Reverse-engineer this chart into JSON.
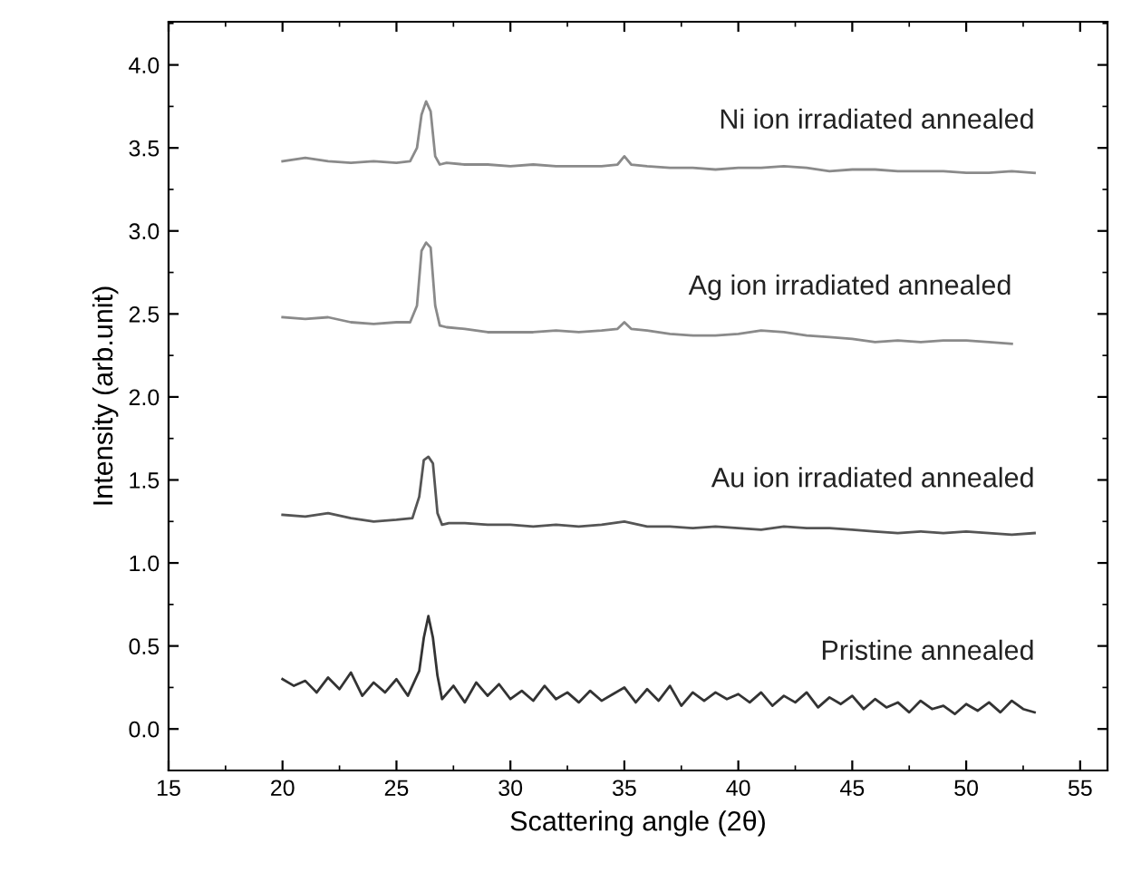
{
  "chart_data": {
    "type": "line",
    "xlabel": "Scattering angle (2θ)",
    "ylabel": "Intensity (arb.unit)",
    "xlim": [
      15,
      56.2
    ],
    "ylim": [
      -0.25,
      4.26
    ],
    "xticks": [
      15,
      20,
      25,
      30,
      35,
      40,
      45,
      50,
      55
    ],
    "yticks": [
      {
        "value": 0,
        "label": "0.0"
      },
      {
        "value": 0.5,
        "label": "0.5"
      },
      {
        "value": 1,
        "label": "1.0"
      },
      {
        "value": 1.5,
        "label": "1.5"
      },
      {
        "value": 2,
        "label": "2.0"
      },
      {
        "value": 2.5,
        "label": "2.5"
      },
      {
        "value": 3,
        "label": "3.0"
      },
      {
        "value": 3.5,
        "label": "3.5"
      },
      {
        "value": 4,
        "label": "4.0"
      }
    ],
    "grid": false,
    "legend": false,
    "series": [
      {
        "name": "Ni ion irradiated annealed",
        "color": "#8a8a8a",
        "x": [
          20,
          21,
          22,
          23,
          24,
          25,
          25.6,
          25.9,
          26.1,
          26.3,
          26.5,
          26.7,
          26.9,
          27.2,
          28,
          29,
          30,
          31,
          32,
          33,
          34,
          34.7,
          35,
          35.3,
          36,
          37,
          38,
          39,
          40,
          41,
          42,
          43,
          44,
          45,
          46,
          47,
          48,
          49,
          50,
          51,
          52,
          53
        ],
        "values": [
          3.42,
          3.44,
          3.42,
          3.41,
          3.42,
          3.41,
          3.42,
          3.5,
          3.7,
          3.78,
          3.72,
          3.45,
          3.4,
          3.41,
          3.4,
          3.4,
          3.39,
          3.4,
          3.39,
          3.39,
          3.39,
          3.4,
          3.45,
          3.4,
          3.39,
          3.38,
          3.38,
          3.37,
          3.38,
          3.38,
          3.39,
          3.38,
          3.36,
          3.37,
          3.37,
          3.36,
          3.36,
          3.36,
          3.35,
          3.35,
          3.36,
          3.35
        ]
      },
      {
        "name": "Ag ion irradiated annealed",
        "color": "#8a8a8a",
        "x": [
          20,
          21,
          22,
          23,
          24,
          25,
          25.6,
          25.9,
          26.1,
          26.3,
          26.5,
          26.7,
          26.9,
          27.2,
          28,
          29,
          30,
          31,
          32,
          33,
          34,
          34.7,
          35,
          35.3,
          36,
          37,
          38,
          39,
          40,
          41,
          42,
          43,
          44,
          45,
          46,
          47,
          48,
          49,
          50,
          51,
          52
        ],
        "values": [
          2.48,
          2.47,
          2.48,
          2.45,
          2.44,
          2.45,
          2.45,
          2.55,
          2.88,
          2.93,
          2.9,
          2.55,
          2.43,
          2.42,
          2.41,
          2.39,
          2.39,
          2.39,
          2.4,
          2.39,
          2.4,
          2.41,
          2.45,
          2.41,
          2.4,
          2.38,
          2.37,
          2.37,
          2.38,
          2.4,
          2.39,
          2.37,
          2.36,
          2.35,
          2.33,
          2.34,
          2.33,
          2.34,
          2.34,
          2.33,
          2.32
        ]
      },
      {
        "name": "Au ion irradiated annealed",
        "color": "#555555",
        "x": [
          20,
          21,
          22,
          23,
          24,
          25,
          25.7,
          26,
          26.2,
          26.4,
          26.6,
          26.8,
          27.0,
          27.3,
          28,
          29,
          30,
          31,
          32,
          33,
          34,
          35,
          36,
          37,
          38,
          39,
          40,
          41,
          42,
          43,
          44,
          45,
          46,
          47,
          48,
          49,
          50,
          51,
          52,
          53
        ],
        "values": [
          1.29,
          1.28,
          1.3,
          1.27,
          1.25,
          1.26,
          1.27,
          1.4,
          1.62,
          1.64,
          1.6,
          1.3,
          1.23,
          1.24,
          1.24,
          1.23,
          1.23,
          1.22,
          1.23,
          1.22,
          1.23,
          1.25,
          1.22,
          1.22,
          1.21,
          1.22,
          1.21,
          1.2,
          1.22,
          1.21,
          1.21,
          1.2,
          1.19,
          1.18,
          1.19,
          1.18,
          1.19,
          1.18,
          1.17,
          1.18
        ]
      },
      {
        "name": "Pristine annealed",
        "color": "#333333",
        "x": [
          20,
          20.5,
          21,
          21.5,
          22,
          22.5,
          23,
          23.5,
          24,
          24.5,
          25,
          25.5,
          26,
          26.2,
          26.4,
          26.6,
          26.8,
          27,
          27.5,
          28,
          28.5,
          29,
          29.5,
          30,
          30.5,
          31,
          31.5,
          32,
          32.5,
          33,
          33.5,
          34,
          34.5,
          35,
          35.5,
          36,
          36.5,
          37,
          37.5,
          38,
          38.5,
          39,
          39.5,
          40,
          40.5,
          41,
          41.5,
          42,
          42.5,
          43,
          43.5,
          44,
          44.5,
          45,
          45.5,
          46,
          46.5,
          47,
          47.5,
          48,
          48.5,
          49,
          49.5,
          50,
          50.5,
          51,
          51.5,
          52,
          52.5,
          53
        ],
        "values": [
          0.3,
          0.26,
          0.29,
          0.22,
          0.31,
          0.24,
          0.34,
          0.2,
          0.28,
          0.22,
          0.3,
          0.2,
          0.35,
          0.55,
          0.68,
          0.55,
          0.32,
          0.18,
          0.26,
          0.16,
          0.28,
          0.2,
          0.27,
          0.18,
          0.23,
          0.17,
          0.26,
          0.18,
          0.22,
          0.16,
          0.23,
          0.17,
          0.21,
          0.25,
          0.16,
          0.24,
          0.17,
          0.26,
          0.14,
          0.22,
          0.17,
          0.22,
          0.18,
          0.21,
          0.16,
          0.22,
          0.14,
          0.2,
          0.16,
          0.22,
          0.13,
          0.19,
          0.15,
          0.2,
          0.12,
          0.18,
          0.13,
          0.16,
          0.1,
          0.17,
          0.12,
          0.14,
          0.09,
          0.15,
          0.11,
          0.16,
          0.1,
          0.17,
          0.12,
          0.1
        ]
      }
    ]
  }
}
